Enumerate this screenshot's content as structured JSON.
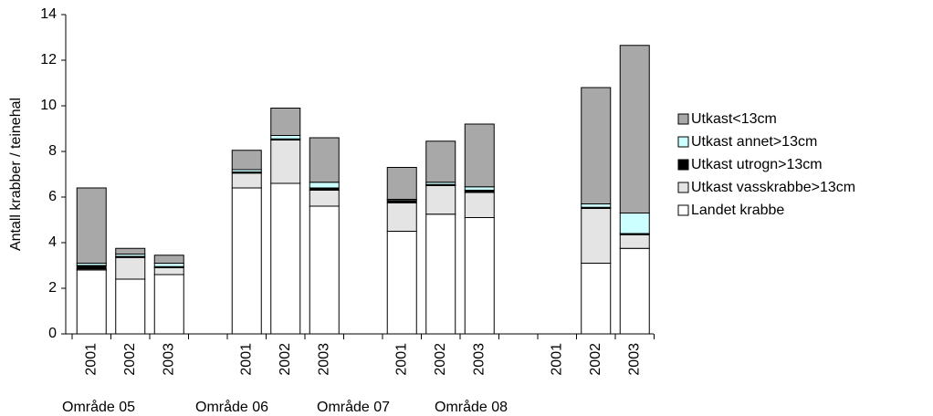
{
  "chart_data": {
    "type": "stacked_bar",
    "y_label": "Antall krabber / teinehal",
    "categories": [
      "2001",
      "2002",
      "2003",
      null,
      "2001",
      "2002",
      "2003",
      null,
      "2001",
      "2002",
      "2003",
      null,
      "2001",
      "2002",
      "2003"
    ],
    "group_labels": [
      "Område 05",
      "Område 06",
      "Område 07",
      "Område 08"
    ],
    "series": [
      {
        "name": "Landet krabbe",
        "color": "#ffffff",
        "values": [
          2.8,
          2.4,
          2.6,
          null,
          6.4,
          6.6,
          5.6,
          null,
          4.5,
          5.25,
          5.1,
          null,
          null,
          3.1,
          3.75
        ]
      },
      {
        "name": "Utkast vasskrabbe>13cm",
        "color": "#e4e4e4",
        "values": [
          0.05,
          0.95,
          0.3,
          null,
          0.65,
          1.9,
          0.7,
          null,
          1.25,
          1.25,
          1.1,
          null,
          null,
          2.4,
          0.6
        ]
      },
      {
        "name": "Utkast utrogn>13cm",
        "color": "#000000",
        "values": [
          0.15,
          0.05,
          0.05,
          null,
          0.05,
          0.05,
          0.1,
          null,
          0.1,
          0.05,
          0.1,
          null,
          null,
          0.05,
          0.05
        ]
      },
      {
        "name": "Utkast annet>13cm",
        "color": "#ccffff",
        "values": [
          0.1,
          0.1,
          0.15,
          null,
          0.1,
          0.15,
          0.25,
          null,
          0.05,
          0.1,
          0.15,
          null,
          null,
          0.15,
          0.9
        ]
      },
      {
        "name": "Utkast<13cm",
        "color": "#a8a8a8",
        "values": [
          3.3,
          0.25,
          0.35,
          null,
          0.85,
          1.2,
          1.95,
          null,
          1.4,
          1.8,
          2.75,
          null,
          null,
          5.1,
          7.35
        ]
      }
    ],
    "ylim": [
      0,
      14
    ],
    "yticks": [
      0,
      2,
      4,
      6,
      8,
      10,
      12,
      14
    ],
    "grid": false
  }
}
